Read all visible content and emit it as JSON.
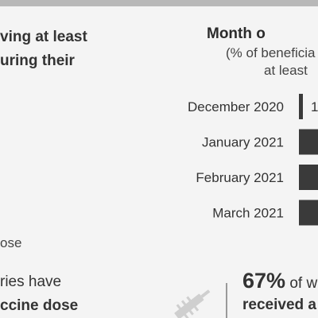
{
  "left_heading": [
    "ving at least",
    "uring their"
  ],
  "dose_note": "ose",
  "stat_left": [
    "ries have",
    "ccine dose"
  ],
  "stat_right": {
    "percent": "67%",
    "line1_text": " of w",
    "line2_text": "received a"
  },
  "chart_data": {
    "type": "bar",
    "title": "Month o",
    "subtitle": [
      "(% of beneficia",
      "at least"
    ],
    "categories": [
      "December 2020",
      "January 2021",
      "February 2021",
      "March 2021"
    ],
    "values": [
      1,
      10,
      10,
      10
    ],
    "data_labels": [
      "1",
      "",
      "",
      ""
    ],
    "bar_color": "#3a3a3a"
  }
}
